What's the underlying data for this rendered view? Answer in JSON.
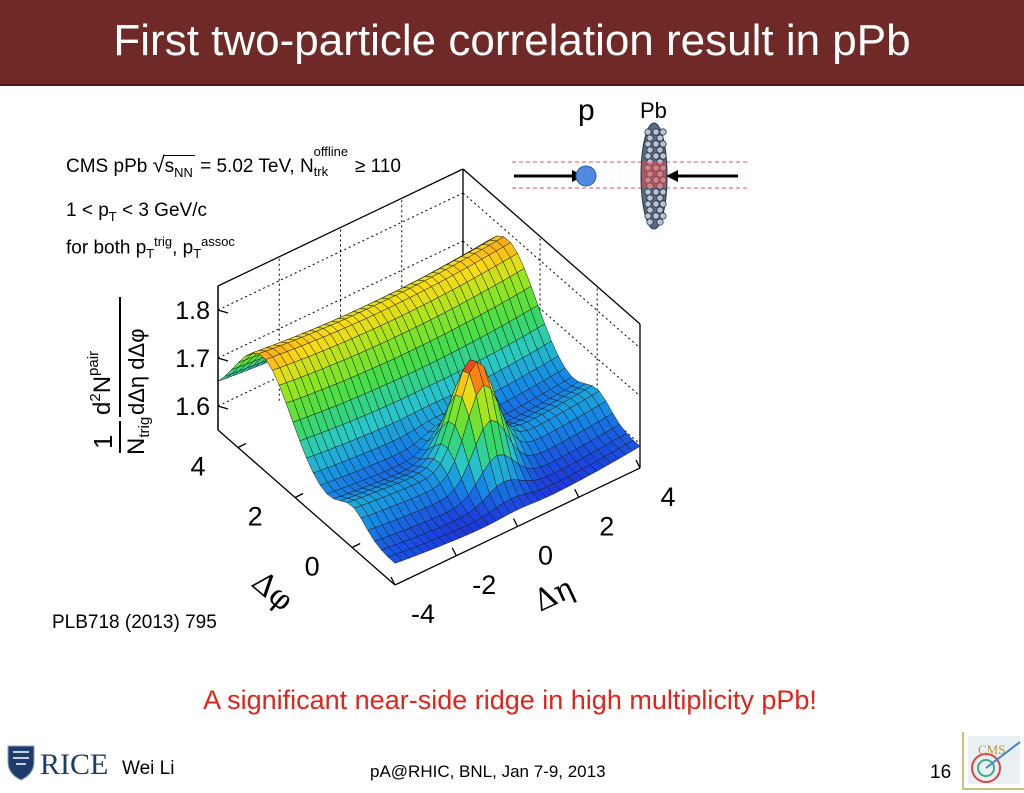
{
  "slide": {
    "title": "First two-particle correlation result in pPb",
    "cms_line": {
      "prefix": "CMS pPb ",
      "s": "s",
      "nn": "NN",
      "mid": " = 5.02 TeV, N",
      "offline": "offline",
      "trk": "trk",
      "suffix": " ≥ 110"
    },
    "pt_range": {
      "a": "1 < p",
      "t": "T",
      "b": " < 3 GeV/c"
    },
    "for_both": {
      "a": "for both p",
      "t1": "T",
      "trig": "trig",
      "mid": ", p",
      "t2": "T",
      "assoc": "assoc"
    },
    "reference": "PLB718 (2013) 795",
    "highlight": "A significant near-side ridge in high multiplicity pPb!",
    "footer": {
      "author": "Wei Li",
      "conference": "pA@RHIC, BNL, Jan 7-9, 2013",
      "page": "16"
    },
    "logos": {
      "left_logo_text": "RICE",
      "right_logo_text": "CMS"
    },
    "schematic": {
      "label_p": "p",
      "label_pb": "Pb"
    }
  },
  "chart_data": {
    "type": "surface3d",
    "z_label": {
      "one": "1",
      "ntrig": "N",
      "trig": "trig",
      "d2n": "d",
      "two": "2",
      "n": "N",
      "pair": "pair",
      "denom": "dΔη dΔφ"
    },
    "z_ticks": [
      "1.6",
      "1.7",
      "1.8"
    ],
    "z_range": [
      1.55,
      1.85
    ],
    "phi_label": "Δφ",
    "phi_ticks": [
      "0",
      "2",
      "4"
    ],
    "phi_range": [
      -1.5,
      4.7
    ],
    "eta_label": "Δη",
    "eta_ticks": [
      "-4",
      "-2",
      "0",
      "2",
      "4"
    ],
    "eta_range": [
      -4,
      4
    ],
    "surface": {
      "baseline": 1.58,
      "near_side_ridge": 1.62,
      "away_side_ridge": 1.77,
      "near_side_peak": 1.82,
      "peak_location": {
        "delta_eta": 0,
        "delta_phi": 0
      }
    }
  }
}
